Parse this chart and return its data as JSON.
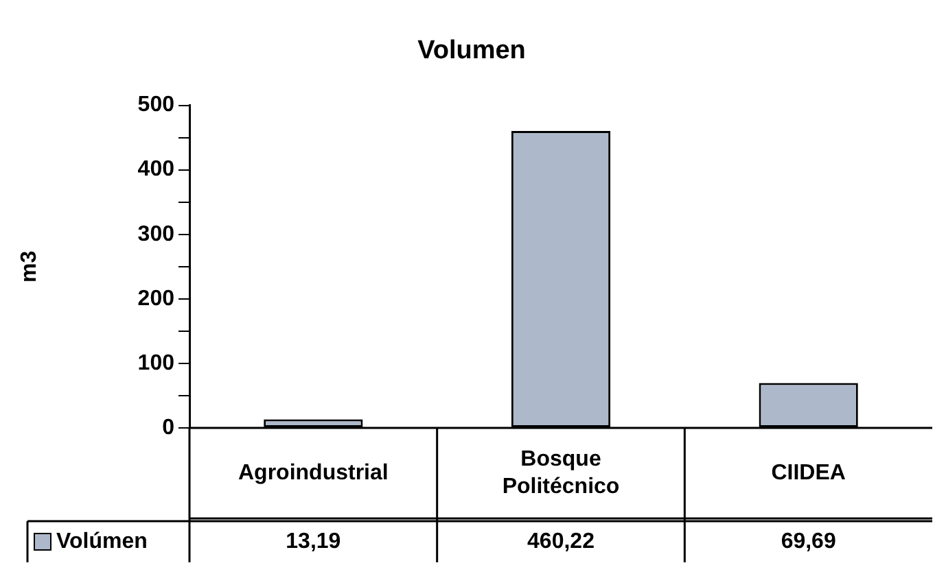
{
  "chart_data": {
    "type": "bar",
    "title": "Volumen",
    "ylabel": "m3",
    "categories": [
      "Agroindustrial",
      "Bosque Politécnico",
      "CIIDEA"
    ],
    "series": [
      {
        "name": "Volúmen",
        "color": "#adb9ca",
        "values": [
          13.19,
          460.22,
          69.69
        ],
        "value_labels": [
          "13,19",
          "460,22",
          "69,69"
        ]
      }
    ],
    "ylim": [
      0,
      500
    ],
    "yticks": [
      0,
      {
        "value": 50,
        "label": null
      },
      100,
      {
        "value": 150,
        "label": null
      },
      200,
      {
        "value": 250,
        "label": null
      },
      300,
      {
        "value": 350,
        "label": null
      },
      400,
      {
        "value": 450,
        "label": null
      },
      500
    ],
    "grid": false,
    "legend": "bottom"
  }
}
